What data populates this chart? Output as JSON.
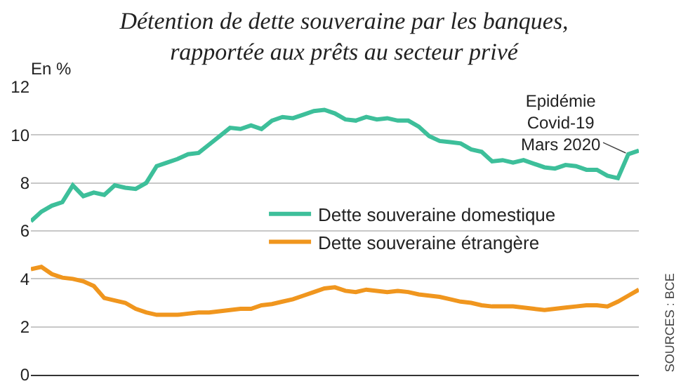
{
  "chart_data": {
    "type": "line",
    "title": "Détention de dette souveraine par les banques, rapportée aux prêts au secteur privé",
    "ylabel": "En %",
    "categories": [
      null,
      null,
      null,
      null,
      null,
      null,
      null,
      null,
      null,
      null,
      null,
      null,
      null,
      null,
      null,
      null,
      null,
      null,
      null,
      null,
      null,
      null,
      null,
      null,
      null,
      null,
      null,
      null,
      null,
      null,
      null,
      null,
      null,
      null,
      null,
      null,
      null,
      null,
      null,
      null,
      null,
      null,
      null,
      null,
      null,
      null,
      null,
      null,
      null,
      null,
      null,
      null,
      null,
      null,
      null,
      null,
      null,
      null,
      null
    ],
    "series": [
      {
        "name": "Dette souveraine domestique",
        "color": "#3dbf9a",
        "values": [
          6.4,
          6.8,
          7.05,
          7.2,
          7.9,
          7.45,
          7.6,
          7.5,
          7.9,
          7.8,
          7.75,
          8.0,
          8.7,
          8.85,
          9.0,
          9.2,
          9.25,
          9.6,
          9.95,
          10.3,
          10.25,
          10.4,
          10.25,
          10.6,
          10.75,
          10.7,
          10.85,
          11.0,
          11.05,
          10.9,
          10.65,
          10.6,
          10.75,
          10.65,
          10.7,
          10.6,
          10.6,
          10.35,
          9.95,
          9.75,
          9.7,
          9.65,
          9.4,
          9.3,
          8.9,
          8.95,
          8.85,
          8.95,
          8.8,
          8.65,
          8.6,
          8.75,
          8.7,
          8.55,
          8.55,
          8.3,
          8.2,
          9.2,
          9.35
        ]
      },
      {
        "name": "Dette souveraine étrangère",
        "color": "#f0961e",
        "values": [
          4.4,
          4.5,
          4.2,
          4.05,
          4.0,
          3.9,
          3.7,
          3.2,
          3.1,
          3.0,
          2.75,
          2.6,
          2.5,
          2.5,
          2.5,
          2.55,
          2.6,
          2.6,
          2.65,
          2.7,
          2.75,
          2.75,
          2.9,
          2.95,
          3.05,
          3.15,
          3.3,
          3.45,
          3.6,
          3.65,
          3.5,
          3.45,
          3.55,
          3.5,
          3.45,
          3.5,
          3.45,
          3.35,
          3.3,
          3.25,
          3.15,
          3.05,
          3.0,
          2.9,
          2.85,
          2.85,
          2.85,
          2.8,
          2.75,
          2.7,
          2.75,
          2.8,
          2.85,
          2.9,
          2.9,
          2.85,
          3.05,
          3.3,
          3.55
        ]
      }
    ],
    "ylim": [
      0,
      12
    ],
    "yticks": [
      0,
      2,
      4,
      6,
      8,
      10,
      12
    ],
    "grid": "y",
    "legend": "center",
    "annotations": [
      "Epidémie Covid-19 Mars 2020",
      "SOURCES : BCE"
    ]
  }
}
